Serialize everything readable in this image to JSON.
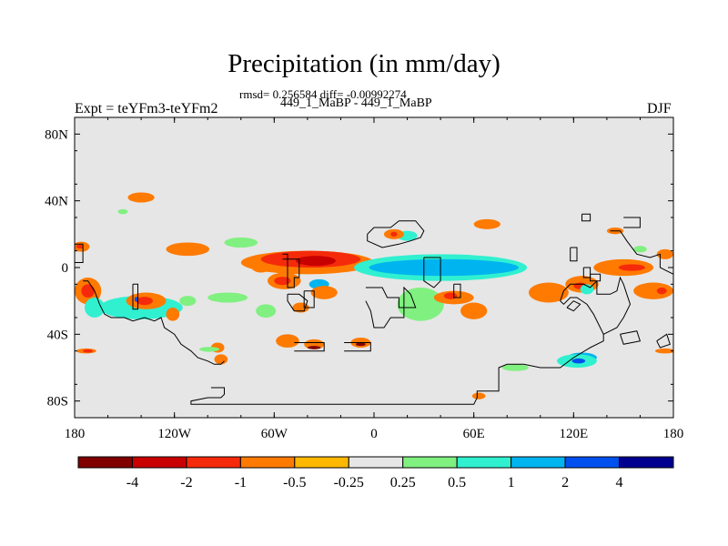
{
  "chart_data": {
    "type": "heatmap",
    "title": "Precipitation (in mm/day)",
    "stats_line": "rmsd= 0.256584 diff= -0.00992274",
    "experiment_label": "Expt = teYFm3-teYFm2",
    "comparison_label": "449_1_MaBP - 449_1_MaBP",
    "season": "DJF",
    "stats": {
      "rmsd": 0.256584,
      "diff": -0.00992274
    },
    "xaxis": {
      "range": [
        -180,
        180
      ],
      "ticks": [
        -180,
        -120,
        -60,
        0,
        60,
        120,
        180
      ],
      "tick_labels": [
        "180",
        "120W",
        "60W",
        "0",
        "60E",
        "120E",
        "180"
      ]
    },
    "yaxis": {
      "range": [
        -90,
        90
      ],
      "ticks": [
        -80,
        -40,
        0,
        40,
        80
      ],
      "tick_labels": [
        "80S",
        "40S",
        "0",
        "40N",
        "80N"
      ]
    },
    "colorbar": {
      "tick_labels": [
        "-4",
        "-2",
        "-1",
        "-0.5",
        "-0.25",
        "0.25",
        "0.5",
        "1",
        "2",
        "4"
      ],
      "colors": [
        "#800000",
        "#c80000",
        "#f52a0a",
        "#ff7a00",
        "#ffb800",
        "#e6e6e6",
        "#80f080",
        "#30f0d0",
        "#00b4f0",
        "#0050f0",
        "#000090"
      ]
    },
    "anomaly_regions": [
      {
        "bin": "0.25",
        "cx": -151,
        "cy": 33.5,
        "rx": 3,
        "ry": 1.5
      },
      {
        "bin": "-0.5",
        "cx": -140,
        "cy": 42,
        "rx": 8,
        "ry": 3
      },
      {
        "bin": "-0.5",
        "cx": -176,
        "cy": 12.5,
        "rx": 5,
        "ry": 3
      },
      {
        "bin": "-1",
        "cx": -177,
        "cy": 12.5,
        "rx": 2,
        "ry": 1.2
      },
      {
        "bin": "-0.5",
        "cx": -172,
        "cy": -14,
        "rx": 8,
        "ry": 8
      },
      {
        "bin": "-1",
        "cx": -172,
        "cy": -14,
        "rx": 4,
        "ry": 4
      },
      {
        "bin": "0.5",
        "cx": -168,
        "cy": -24,
        "rx": 6,
        "ry": 6
      },
      {
        "bin": "0.5",
        "cx": -140,
        "cy": -24,
        "rx": 25,
        "ry": 7
      },
      {
        "bin": "-0.5",
        "cx": -137,
        "cy": -20,
        "rx": 12,
        "ry": 5
      },
      {
        "bin": "-1",
        "cx": -138,
        "cy": -20,
        "rx": 5,
        "ry": 2.5
      },
      {
        "bin": "2",
        "cx": -143,
        "cy": -19,
        "rx": 1,
        "ry": 1.5
      },
      {
        "bin": "-0.5",
        "cx": -121,
        "cy": -28,
        "rx": 4,
        "ry": 4
      },
      {
        "bin": "0.25",
        "cx": -112,
        "cy": -20,
        "rx": 5,
        "ry": 3
      },
      {
        "bin": "0.25",
        "cx": -88,
        "cy": -18,
        "rx": 12,
        "ry": 3
      },
      {
        "bin": "0.25",
        "cx": -65,
        "cy": -26,
        "rx": 6,
        "ry": 4
      },
      {
        "bin": "-0.5",
        "cx": -112,
        "cy": 11,
        "rx": 13,
        "ry": 4
      },
      {
        "bin": "0.25",
        "cx": -80,
        "cy": 15,
        "rx": 10,
        "ry": 3
      },
      {
        "bin": "-0.5",
        "cx": -68,
        "cy": 1,
        "rx": 6,
        "ry": 4
      },
      {
        "bin": "-0.5",
        "cx": -40,
        "cy": 3,
        "rx": 40,
        "ry": 7
      },
      {
        "bin": "-1",
        "cx": -38,
        "cy": 5,
        "rx": 30,
        "ry": 5
      },
      {
        "bin": "-2",
        "cx": -35,
        "cy": 4,
        "rx": 12,
        "ry": 3
      },
      {
        "bin": "-0.5",
        "cx": -54,
        "cy": -8,
        "rx": 10,
        "ry": 5
      },
      {
        "bin": "-1",
        "cx": -55,
        "cy": -8,
        "rx": 5,
        "ry": 2.5
      },
      {
        "bin": "1",
        "cx": -33,
        "cy": -10,
        "rx": 6,
        "ry": 3
      },
      {
        "bin": "-0.5",
        "cx": -30,
        "cy": -15,
        "rx": 8,
        "ry": 4
      },
      {
        "bin": "-0.5",
        "cx": -44,
        "cy": -24,
        "rx": 5,
        "ry": 3
      },
      {
        "bin": "-0.5",
        "cx": -52,
        "cy": -44,
        "rx": 7,
        "ry": 4
      },
      {
        "bin": "-0.5",
        "cx": -36,
        "cy": -46,
        "rx": 6,
        "ry": 3
      },
      {
        "bin": "-4",
        "cx": -36,
        "cy": -48,
        "rx": 4,
        "ry": 1
      },
      {
        "bin": "-0.5",
        "cx": -8,
        "cy": -45,
        "rx": 6,
        "ry": 3
      },
      {
        "bin": "-4",
        "cx": -8,
        "cy": -46,
        "rx": 3,
        "ry": 1
      },
      {
        "bin": "-0.5",
        "cx": -94,
        "cy": -48,
        "rx": 4,
        "ry": 3
      },
      {
        "bin": "0.25",
        "cx": -99,
        "cy": -49,
        "rx": 6,
        "ry": 1.5
      },
      {
        "bin": "-0.5",
        "cx": -92,
        "cy": -55,
        "rx": 4,
        "ry": 3
      },
      {
        "bin": "-0.5",
        "cx": -173,
        "cy": -50,
        "rx": 6,
        "ry": 1.5
      },
      {
        "bin": "-1",
        "cx": -172,
        "cy": -50,
        "rx": 3,
        "ry": 1
      },
      {
        "bin": "0.5",
        "cx": 20,
        "cy": 19,
        "rx": 6,
        "ry": 3
      },
      {
        "bin": "-0.5",
        "cx": 12,
        "cy": 20,
        "rx": 6,
        "ry": 3
      },
      {
        "bin": "-1",
        "cx": 12,
        "cy": 20,
        "rx": 2,
        "ry": 1.5
      },
      {
        "bin": "0.5",
        "cx": 40,
        "cy": 0,
        "rx": 52,
        "ry": 8
      },
      {
        "bin": "1",
        "cx": 42,
        "cy": 0,
        "rx": 45,
        "ry": 5
      },
      {
        "bin": "-0.5",
        "cx": 68,
        "cy": 26,
        "rx": 8,
        "ry": 3
      },
      {
        "bin": "0.25",
        "cx": 28,
        "cy": -22,
        "rx": 14,
        "ry": 10
      },
      {
        "bin": "-0.5",
        "cx": 48,
        "cy": -18,
        "rx": 12,
        "ry": 4
      },
      {
        "bin": "-1",
        "cx": 46,
        "cy": -17,
        "rx": 4,
        "ry": 2
      },
      {
        "bin": "-0.5",
        "cx": 60,
        "cy": -26,
        "rx": 8,
        "ry": 5
      },
      {
        "bin": "-0.5",
        "cx": 105,
        "cy": -15,
        "rx": 12,
        "ry": 6
      },
      {
        "bin": "-0.5",
        "cx": 125,
        "cy": -10,
        "rx": 10,
        "ry": 5
      },
      {
        "bin": "-1",
        "cx": 124,
        "cy": -11,
        "rx": 4,
        "ry": 2
      },
      {
        "bin": "0.5",
        "cx": 128,
        "cy": -13,
        "rx": 4,
        "ry": 3
      },
      {
        "bin": "-0.5",
        "cx": 150,
        "cy": 0,
        "rx": 18,
        "ry": 5
      },
      {
        "bin": "-1",
        "cx": 155,
        "cy": 0,
        "rx": 8,
        "ry": 2
      },
      {
        "bin": "-0.5",
        "cx": 168,
        "cy": -14,
        "rx": 12,
        "ry": 5
      },
      {
        "bin": "-1",
        "cx": 173,
        "cy": -14,
        "rx": 3,
        "ry": 2
      },
      {
        "bin": "-0.5",
        "cx": 175,
        "cy": 8,
        "rx": 5,
        "ry": 3
      },
      {
        "bin": "-0.5",
        "cx": 145,
        "cy": 22,
        "rx": 5,
        "ry": 2
      },
      {
        "bin": "0.25",
        "cx": 160,
        "cy": 11,
        "rx": 4,
        "ry": 2
      },
      {
        "bin": "-0.5",
        "cx": 175,
        "cy": -50,
        "rx": 6,
        "ry": 1.5
      },
      {
        "bin": "1",
        "cx": 125,
        "cy": -54,
        "rx": 9,
        "ry": 3
      },
      {
        "bin": "0.5",
        "cx": 122,
        "cy": -56,
        "rx": 12,
        "ry": 4
      },
      {
        "bin": "2",
        "cx": 123,
        "cy": -56,
        "rx": 4,
        "ry": 1.5
      },
      {
        "bin": "0.25",
        "cx": 85,
        "cy": -60,
        "rx": 8,
        "ry": 2
      },
      {
        "bin": "-0.5",
        "cx": 63,
        "cy": -77,
        "rx": 4,
        "ry": 2
      }
    ],
    "coastlines": [
      "-180,14 -175,14 -175,3 -180,3",
      "-175,-8 -172,-8 -168,-14 -165,-22 -162,-28 -158,-30 -150,-30 -145,-32 -138,-30 -132,-32 -128,-30 -126,-36 -120,-40 -116,-46 -110,-50 -106,-54 -100,-56 -96,-58 -92,-58 -90,-56",
      "-145,-10 -142,-10 -142,-25 -145,-25 -145,-10",
      "-55,8 -52,8 -52,-12 -48,-12 -48,-6 -45,-6 -45,5 -55,5",
      "-52,-16 -45,-16 -40,-20 -42,-26 -48,-26 -52,-20 -52,-16",
      "-42,-14 -36,-14 -36,-24 -42,-24 -42,-14",
      "-48,-45 -30,-45 -30,-50 -48,-50",
      "-18,-45 -2,-45 -2,-50 -18,-50",
      "-98,-72 -90,-72 -90,-76 -92,-78 -100,-78 -110,-80 -110,-82 -20,-82 40,-82 60,-82 62,-78 62,-74 75,-74 75,-60 80,-58 90,-58 100,-60 112,-60 120,-54 130,-48 138,-44 138,-40",
      "-5,-12 5,-12 8,-18 15,-18 15,-24 25,-24 22,-16 18,-12 18,-30 10,-30 6,-36 0,-36 -2,-26 -5,-20",
      "-4,20 0,24 10,24 15,28 25,28 30,22 28,18 22,16 15,14 5,12 -4,16 -4,20",
      "30,6 40,6 40,-8 36,-12 30,-8 30,6",
      "48,-10 52,-10 52,-18 48,-18 48,-10",
      "125,32 130,32 130,28 125,28 125,32",
      "150,30 160,30 160,24 150,24",
      "118,12 122,12 122,4 118,4 118,12",
      "126,0 130,0 130,-6 126,-6 126,0",
      "130,-4 136,-4 136,-8 130,-8 130,-4",
      "134,-8 134,-16 142,-16 146,-14 148,-6 150,-10 152,-16 154,-22 150,-30 146,-36 138,-40 136,-36 132,-28 128,-22 122,-18 118,-18 114,-22 112,-20 114,-14 118,-10 126,-10 130,-12 134,-8",
      "142,22 148,22 152,16 158,8 166,6 172,8 172,0 176,-2 180,-4",
      "116,-24 120,-26 124,-22 120,-20 116,-24",
      "148,-40 158,-38 160,-44 150,-46 148,-40",
      "170,-44 176,-40 178,-46 172,-48 170,-44"
    ]
  }
}
